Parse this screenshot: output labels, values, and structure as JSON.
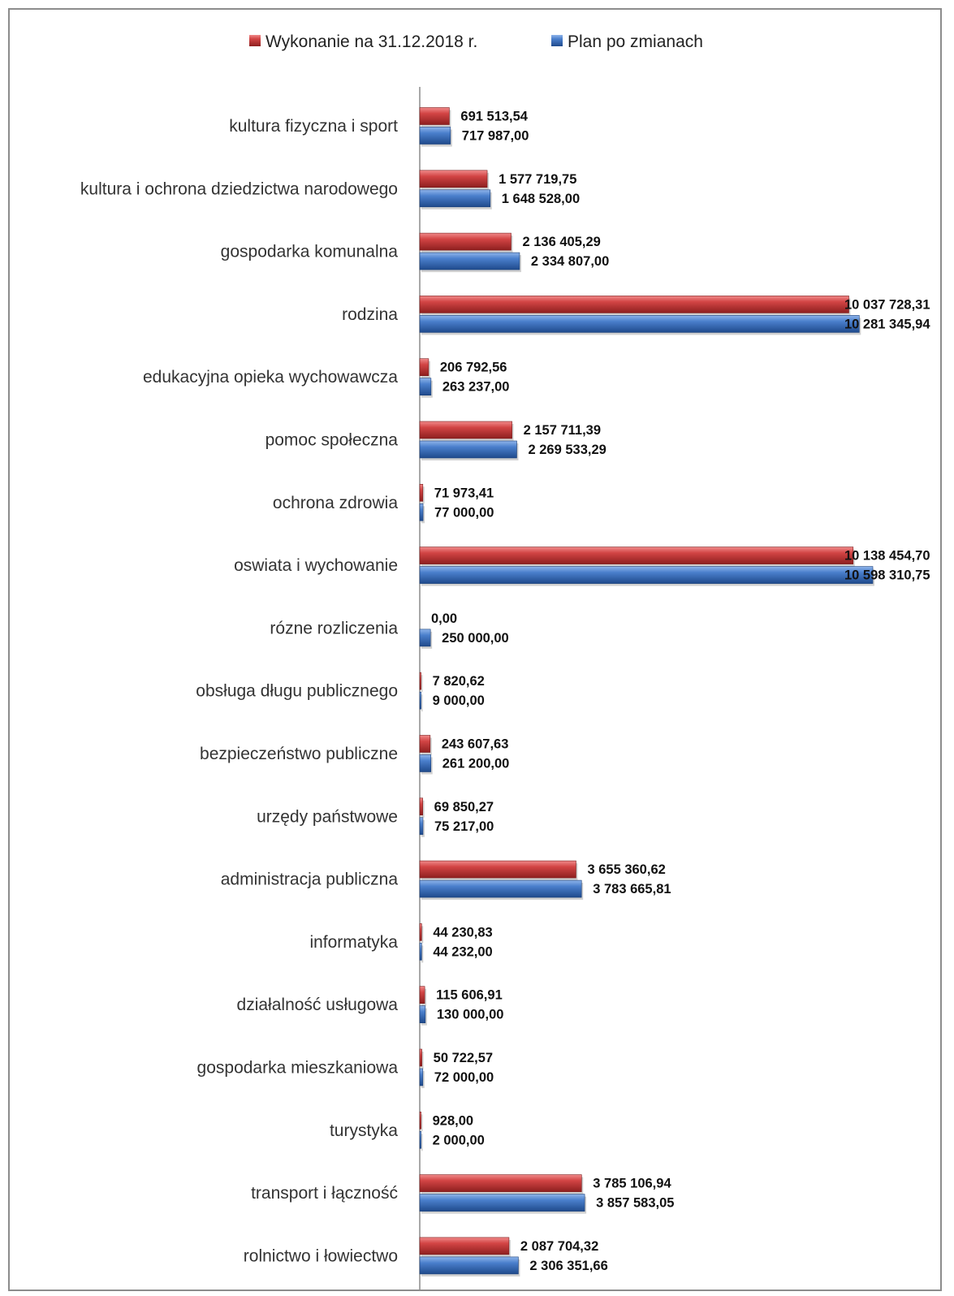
{
  "chart_data": {
    "type": "bar",
    "orientation": "horizontal",
    "legend_position": "top",
    "grid": false,
    "xlim": [
      0,
      10598310.75
    ],
    "categories": [
      "kultura fizyczna i sport",
      "kultura i ochrona dziedzictwa narodowego",
      "gospodarka komunalna",
      "rodzina",
      "edukacyjna opieka wychowawcza",
      "pomoc społeczna",
      "ochrona zdrowia",
      "oswiata i wychowanie",
      "rózne rozliczenia",
      "obsługa długu publicznego",
      "bezpieczeństwo publiczne",
      "urzędy państwowe",
      "administracja publiczna",
      "informatyka",
      "działalność usługowa",
      "gospodarka mieszkaniowa",
      "turystyka",
      "transport i łączność",
      "rolnictwo i łowiectwo"
    ],
    "series": [
      {
        "name": "Wykonanie na 31.12.2018 r.",
        "color": "#c0393b",
        "values": [
          691513.54,
          1577719.75,
          2136405.29,
          10037728.31,
          206792.56,
          2157711.39,
          71973.41,
          10138454.7,
          0.0,
          7820.62,
          243607.63,
          69850.27,
          3655360.62,
          44230.83,
          115606.91,
          50722.57,
          928.0,
          3785106.94,
          2087704.32
        ],
        "labels": [
          "691 513,54",
          "1 577 719,75",
          "2 136 405,29",
          "10 037 728,31",
          "206 792,56",
          "2 157 711,39",
          "71 973,41",
          "10 138 454,70",
          "0,00",
          "7 820,62",
          "243 607,63",
          "69 850,27",
          "3 655 360,62",
          "44 230,83",
          "115 606,91",
          "50 722,57",
          "928,00",
          "3 785 106,94",
          "2 087 704,32"
        ]
      },
      {
        "name": "Plan po zmianach",
        "color": "#3f73c0",
        "values": [
          717987.0,
          1648528.0,
          2334807.0,
          10281345.94,
          263237.0,
          2269533.29,
          77000.0,
          10598310.75,
          250000.0,
          9000.0,
          261200.0,
          75217.0,
          3783665.81,
          44232.0,
          130000.0,
          72000.0,
          2000.0,
          3857583.05,
          2306351.66
        ],
        "labels": [
          "717 987,00",
          "1 648 528,00",
          "2 334 807,00",
          "10 281 345,94",
          "263 237,00",
          "2 269 533,29",
          "77 000,00",
          "10 598 310,75",
          "250 000,00",
          "9 000,00",
          "261 200,00",
          "75 217,00",
          "3 783 665,81",
          "44 232,00",
          "130 000,00",
          "72 000,00",
          "2 000,00",
          "3 857 583,05",
          "2 306 351,66"
        ]
      }
    ]
  }
}
